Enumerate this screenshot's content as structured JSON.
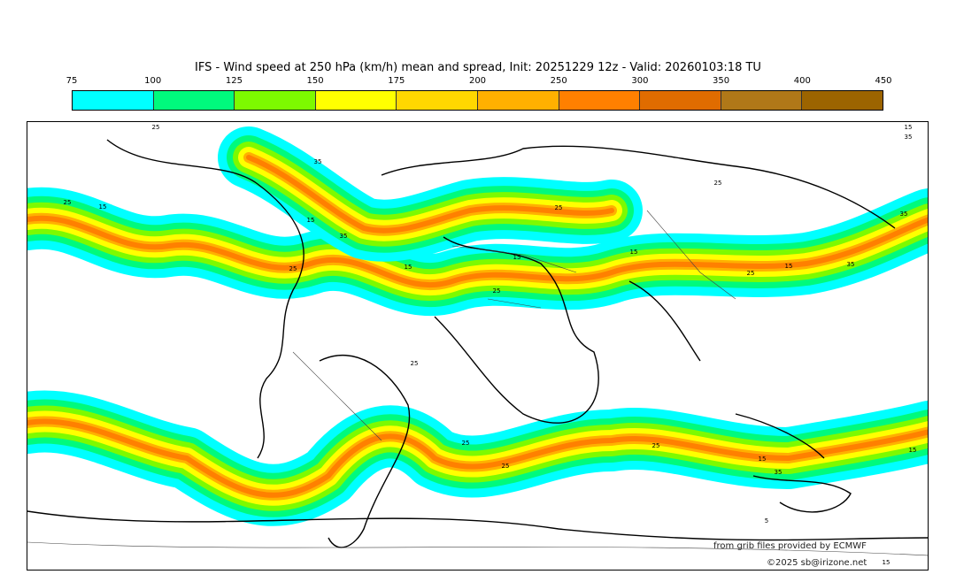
{
  "title": "IFS - Wind speed at 250 hPa (km/h) mean and spread, Init: 20251229 12z - Valid: 20260103:18 TU",
  "colorbar": {
    "ticks": [
      "75",
      "100",
      "125",
      "150",
      "175",
      "200",
      "250",
      "300",
      "350",
      "400",
      "450"
    ],
    "colors": [
      "#00ffff",
      "#00fa7d",
      "#7dfa00",
      "#ffff00",
      "#ffd700",
      "#ffb000",
      "#ff8000",
      "#e06c00",
      "#b07818",
      "#9c6400"
    ]
  },
  "spread_contour_labels": [
    "25",
    "15",
    "35",
    "25",
    "15",
    "35",
    "25",
    "25",
    "35",
    "15",
    "35",
    "15",
    "25",
    "15",
    "25",
    "15",
    "25",
    "15",
    "35",
    "25",
    "25",
    "25",
    "25",
    "15",
    "35",
    "15",
    "5",
    "15"
  ],
  "credits": {
    "source": "from grib files provided by ECMWF",
    "copyright": "©2025 sb@irizone.net"
  }
}
